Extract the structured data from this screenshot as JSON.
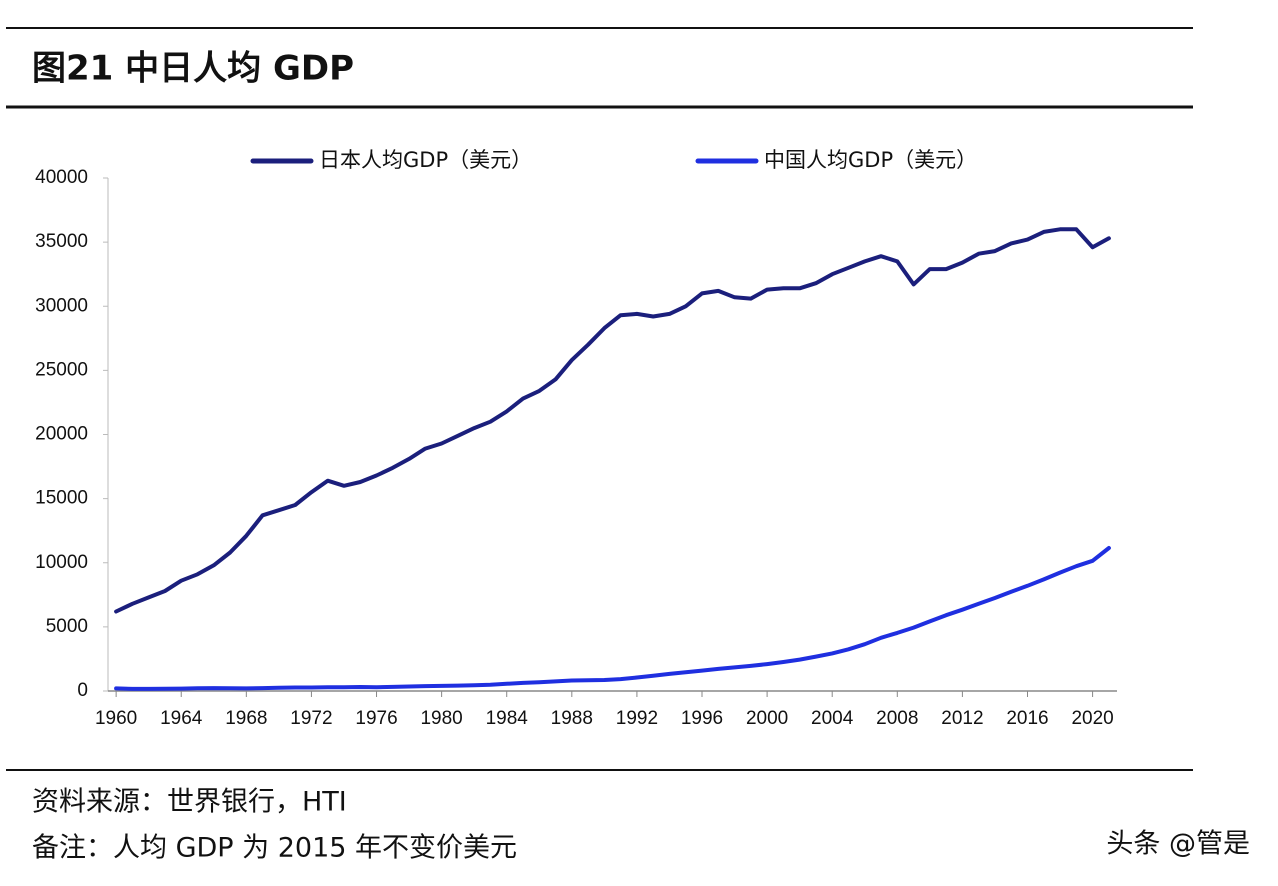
{
  "header": {
    "title": "图21 中日人均 GDP"
  },
  "chart_data": {
    "type": "line",
    "x": [
      1960,
      1961,
      1962,
      1963,
      1964,
      1965,
      1966,
      1967,
      1968,
      1969,
      1970,
      1971,
      1972,
      1973,
      1974,
      1975,
      1976,
      1977,
      1978,
      1979,
      1980,
      1981,
      1982,
      1983,
      1984,
      1985,
      1986,
      1987,
      1988,
      1989,
      1990,
      1991,
      1992,
      1993,
      1994,
      1995,
      1996,
      1997,
      1998,
      1999,
      2000,
      2001,
      2002,
      2003,
      2004,
      2005,
      2006,
      2007,
      2008,
      2009,
      2010,
      2011,
      2012,
      2013,
      2014,
      2015,
      2016,
      2017,
      2018,
      2019,
      2020,
      2021
    ],
    "series": [
      {
        "name": "日本人均GDP（美元）",
        "color": "#1b1f7c",
        "values": [
          6200,
          6800,
          7300,
          7800,
          8600,
          9100,
          9800,
          10800,
          12100,
          13700,
          14100,
          14500,
          15500,
          16400,
          16000,
          16300,
          16800,
          17400,
          18100,
          18900,
          19300,
          19900,
          20500,
          21000,
          21800,
          22800,
          23400,
          24300,
          25800,
          27000,
          28300,
          29300,
          29400,
          29200,
          29400,
          30000,
          31000,
          31200,
          30700,
          30600,
          31300,
          31400,
          31400,
          31800,
          32500,
          33000,
          33500,
          33900,
          33500,
          31700,
          32900,
          32900,
          33400,
          34100,
          34300,
          34900,
          35200,
          35800,
          36000,
          36000,
          34600,
          35300
        ]
      },
      {
        "name": "中国人均GDP（美元）",
        "color": "#1f2fe0",
        "values": [
          200,
          160,
          160,
          170,
          190,
          210,
          230,
          210,
          200,
          230,
          260,
          270,
          270,
          290,
          290,
          310,
          300,
          320,
          350,
          380,
          400,
          420,
          450,
          490,
          560,
          630,
          680,
          750,
          820,
          840,
          860,
          930,
          1050,
          1190,
          1330,
          1460,
          1590,
          1720,
          1840,
          1960,
          2100,
          2260,
          2450,
          2680,
          2930,
          3250,
          3650,
          4150,
          4530,
          4940,
          5430,
          5910,
          6340,
          6800,
          7250,
          7740,
          8200,
          8700,
          9230,
          9730,
          10150,
          11150
        ]
      }
    ],
    "xlim": [
      1959.5,
      2021.5
    ],
    "xticks": [
      1960,
      1964,
      1968,
      1972,
      1976,
      1980,
      1984,
      1988,
      1992,
      1996,
      2000,
      2004,
      2008,
      2012,
      2016,
      2020
    ],
    "ylim": [
      0,
      40000
    ],
    "yticks": [
      0,
      5000,
      10000,
      15000,
      20000,
      25000,
      30000,
      35000,
      40000
    ]
  },
  "footer": {
    "source": "资料来源：世界银行，HTI",
    "note": "备注：人均 GDP 为 2015 年不变价美元",
    "watermark": "头条 @管是"
  }
}
